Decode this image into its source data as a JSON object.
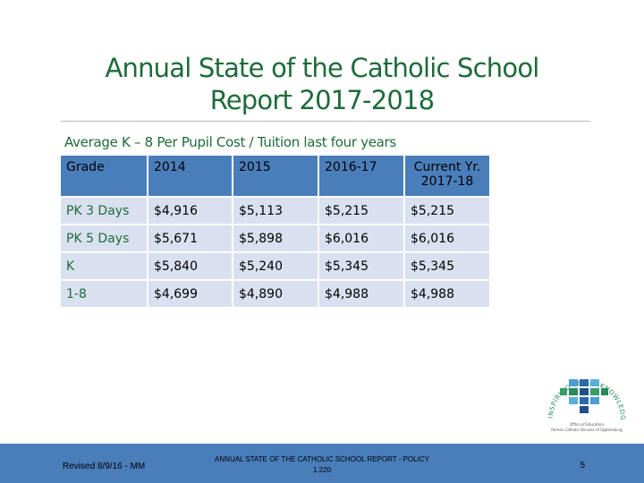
{
  "title": {
    "line1": "Annual State of the Catholic School",
    "line2": "Report 2017-2018"
  },
  "subtitle": "Average K – 8 Per Pupil Cost / Tuition last four years",
  "table": {
    "headers": [
      "Grade",
      "2014",
      "2015",
      "2016-17",
      "Current Yr. 2017-18"
    ],
    "rows": [
      [
        "PK 3 Days",
        "$4,916",
        "$5,113",
        "$5,215",
        "$5,215"
      ],
      [
        "PK 5 Days",
        "$5,671",
        "$5,898",
        "$6,016",
        "$6,016"
      ],
      [
        "K",
        "$5,840",
        "$5,240",
        "$5,345",
        "$5,345"
      ],
      [
        "1-8",
        "$4,699",
        "$4,890",
        "$4,988",
        "$4,988"
      ]
    ]
  },
  "logo": {
    "arc_text": "INSPIRING FAITH, KNOWLEDGE AND COMMUNITY",
    "small_text_1": "Office of Education",
    "small_text_2": "Roman Catholic Diocese of Ogdensburg"
  },
  "footer": {
    "revised": "Revised 8/9/16 - MM",
    "center_line1": "ANNUAL STATE OF THE CATHOLIC SCHOOL REPORT - POLICY",
    "center_line2": "1.220",
    "page": "5"
  },
  "colors": {
    "title_green": "#1e6b3a",
    "header_blue": "#4a7ebb",
    "row_fill": "#d9e1f0"
  }
}
